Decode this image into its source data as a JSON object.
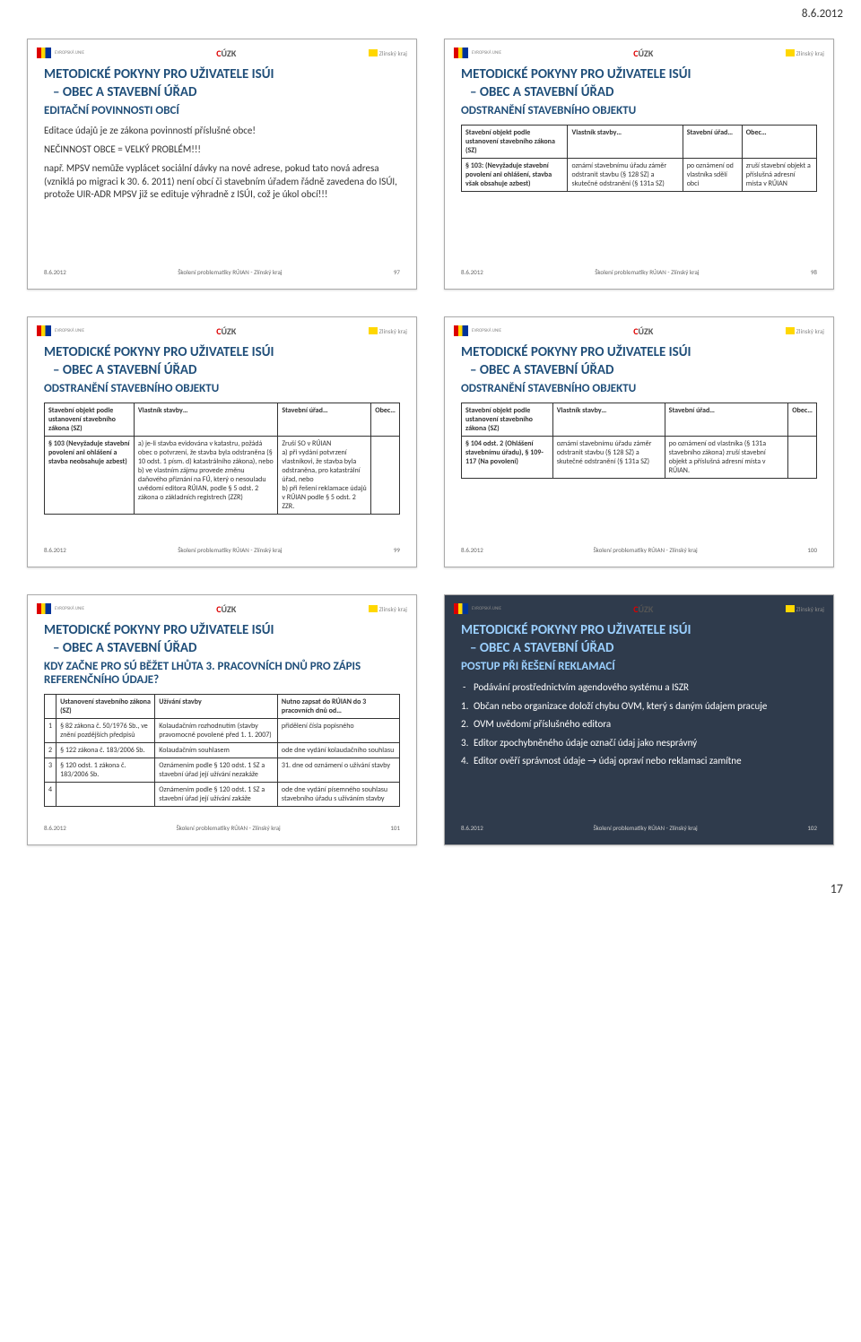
{
  "page": {
    "date": "8.6.2012",
    "number": "17"
  },
  "footer_mid": "Školení problematiky RÚIAN - Zlínský kraj",
  "cuzk": {
    "c": "C",
    "rest": "ÚZK"
  },
  "zlinsky": "Zlínský kraj",
  "title_main": "METODICKÉ POKYNY PRO UŽIVATELE ISÚI",
  "title_sub": "– OBEC A STAVEBNÍ ÚŘAD",
  "slides": {
    "s97": {
      "subtitle": "EDITAČNÍ POVINNOSTI OBCÍ",
      "line1": "Editace údajů je ze zákona povinností příslušné obce!",
      "line2": "NEČINNOST OBCE = VELKÝ PROBLÉM!!!",
      "line3": "např. MPSV nemůže vyplácet sociální dávky na nové adrese, pokud tato nová adresa (vzniklá po migraci k 30. 6. 2011) není obcí či stavebním úřadem řádně zavedena do ISÚI, protože UIR-ADR MPSV již se edituje výhradně z ISÚI, což je úkol obcí!!!",
      "num": "97"
    },
    "s98": {
      "subtitle": "ODSTRANĚNÍ STAVEBNÍHO OBJEKTU",
      "num": "98",
      "table": {
        "headers": [
          "Stavební objekt podle ustanovení stavebního zákona (SZ)",
          "Vlastník stavby…",
          "Stavební úřad…",
          "Obec…"
        ],
        "row_h": "§ 103: (Nevyžaduje stavební povolení ani ohlášení, stavba však obsahuje azbest)",
        "c1": "oznámí stavebnímu úřadu záměr odstranit stavbu (§ 128 SZ) a skutečné odstranění (§ 131a SZ)",
        "c2": "po oznámení od vlastníka sdělí obci",
        "c3": "zruší stavební objekt a příslušná adresní místa v RÚIAN"
      }
    },
    "s99": {
      "subtitle": "ODSTRANĚNÍ STAVEBNÍHO OBJEKTU",
      "num": "99",
      "table": {
        "headers": [
          "Stavební objekt podle ustanovení stavebního zákona (SZ)",
          "Vlastník stavby…",
          "Stavební úřad…",
          "Obec…"
        ],
        "row_h": "§ 103 (Nevyžaduje stavební povolení ani ohlášení a stavba neobsahuje azbest)",
        "c1": "a) je-li stavba evidována v katastru, požádá obec o potvrzení, že stavba byla odstraněna (§ 10 odst. 1 písm. d) katastrálního zákona), nebo\nb) ve vlastním zájmu provede změnu daňového přiznání na FÚ, který o nesouladu uvědomí editora RÚIAN, podle § 5 odst. 2 zákona o základních registrech (ZZR)",
        "c2": "Zruší SO v RÚIAN\na) při vydání potvrzení vlastníkovi, že stavba byla odstraněna, pro katastrální úřad, nebo\nb) při řešení reklamace údajů v RÚIAN podle § 5 odst. 2 ZZR.",
        "c3": ""
      }
    },
    "s100": {
      "subtitle": "ODSTRANĚNÍ STAVEBNÍHO OBJEKTU",
      "num": "100",
      "table": {
        "headers": [
          "Stavební objekt podle ustanovení stavebního zákona (SZ)",
          "Vlastník stavby…",
          "Stavební úřad…",
          "Obec…"
        ],
        "row_h": "§ 104 odst. 2 (Ohlášení stavebnímu úřadu), § 109-117 (Na povolení)",
        "c1": "oznámí stavebnímu úřadu záměr odstranit stavbu (§ 128 SZ) a skutečné odstranění (§ 131a SZ)",
        "c2": "po oznámení od vlastníka (§ 131a stavebního zákona) zruší stavební objekt a příslušná adresní místa v RÚIAN.",
        "c3": ""
      }
    },
    "s101": {
      "subtitle": "KDY ZAČNE PRO SÚ BĚŽET LHŮTA 3. PRACOVNÍCH DNŮ PRO ZÁPIS REFERENČNÍHO ÚDAJE?",
      "num": "101",
      "table": {
        "headers": [
          "",
          "Ustanovení stavebního zákona (SZ)",
          "Užívání stavby",
          "Nutno zapsat do RÚIAN do 3 pracovních dnů od…"
        ],
        "rows": [
          [
            "1",
            "§ 82 zákona č. 50/1976 Sb., ve znění pozdějších předpisů",
            "Kolaudačním rozhodnutím (stavby pravomocně povolené před 1. 1. 2007)",
            "přidělení čísla popisného"
          ],
          [
            "2",
            "§ 122 zákona č. 183/2006 Sb.",
            "Kolaudačním souhlasem",
            "ode dne vydání kolaudačního souhlasu"
          ],
          [
            "3",
            "§ 120 odst. 1 zákona č. 183/2006 Sb.",
            "Oznámením podle § 120 odst. 1 SZ a stavební úřad její užívání nezakáže",
            "31. dne od oznámení o užívání stavby"
          ],
          [
            "4",
            "",
            "Oznámením podle § 120 odst. 1 SZ a stavební úřad její užívání zakáže",
            "ode dne vydání písemného souhlasu stavebního úřadu s užíváním stavby"
          ]
        ]
      }
    },
    "s102": {
      "subtitle": "POSTUP PŘI ŘEŠENÍ REKLAMACÍ",
      "num": "102",
      "dash": "Podávání prostřednictvím agendového systému a ISZR",
      "items": [
        "Občan nebo organizace doloží chybu OVM, který s daným údajem pracuje",
        "OVM uvědomí příslušného editora",
        "Editor zpochybněného údaje označí údaj jako nesprávný",
        "Editor ověří správnost údaje → údaj opraví nebo reklamaci zamítne"
      ]
    }
  }
}
